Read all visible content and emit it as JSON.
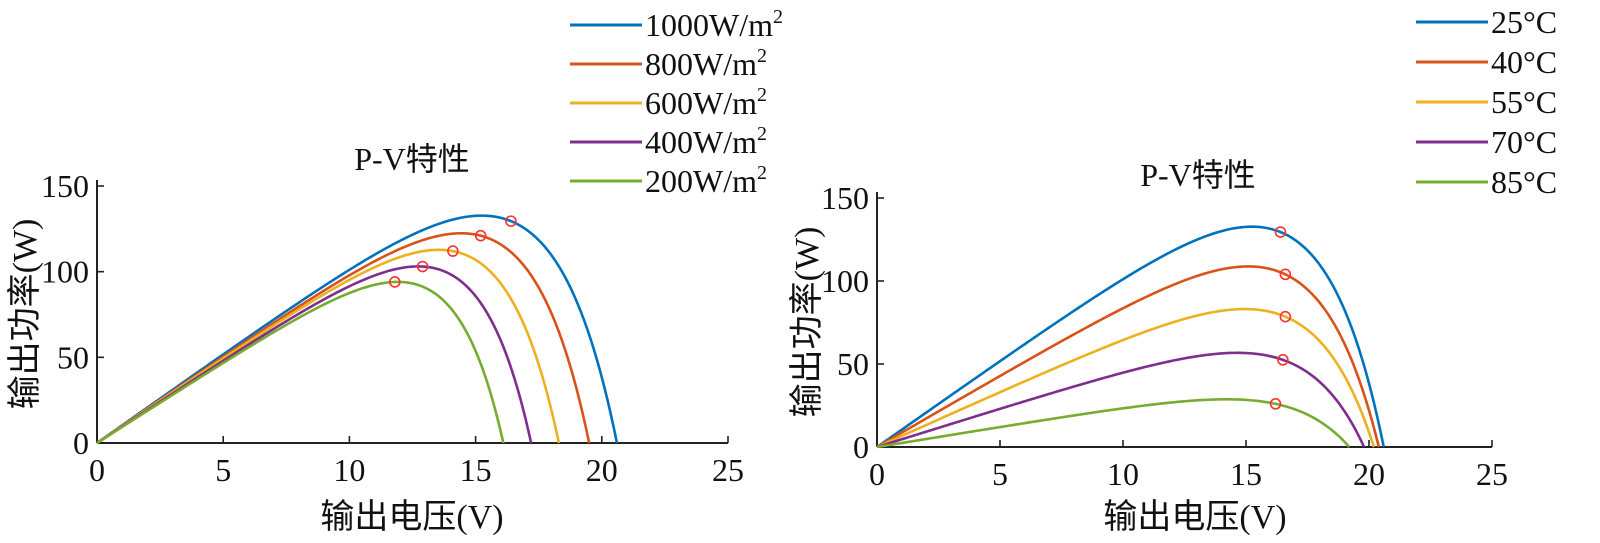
{
  "chart_data": [
    {
      "type": "line",
      "title": "P-V特性",
      "xlabel": "输出电压(V)",
      "ylabel": "输出功率(W)",
      "xlim": [
        0,
        25
      ],
      "ylim": [
        0,
        150
      ],
      "xticks": [
        0,
        5,
        10,
        15,
        20,
        25
      ],
      "yticks": [
        0,
        50,
        100,
        150
      ],
      "legend_position": "top-right",
      "series": [
        {
          "name": "1000W/m",
          "sup": "2",
          "color": "#0072BD",
          "voc": 20.6,
          "vmp": 16.4,
          "pmp": 129.5
        },
        {
          "name": "800W/m",
          "sup": "2",
          "color": "#D95319",
          "voc": 19.5,
          "vmp": 15.2,
          "pmp": 121.0
        },
        {
          "name": "600W/m",
          "sup": "2",
          "color": "#EDB120",
          "voc": 18.3,
          "vmp": 14.1,
          "pmp": 112.0
        },
        {
          "name": "400W/m",
          "sup": "2",
          "color": "#7E2F8E",
          "voc": 17.2,
          "vmp": 12.9,
          "pmp": 103.0
        },
        {
          "name": "200W/m",
          "sup": "2",
          "color": "#77AC30",
          "voc": 16.1,
          "vmp": 11.8,
          "pmp": 94.0
        }
      ]
    },
    {
      "type": "line",
      "title": "P-V特性",
      "xlabel": "输出电压(V)",
      "ylabel": "输出功率(W)",
      "xlim": [
        0,
        25
      ],
      "ylim": [
        0,
        150
      ],
      "xticks": [
        0,
        5,
        10,
        15,
        20,
        25
      ],
      "yticks": [
        0,
        50,
        100,
        150
      ],
      "legend_position": "top-right",
      "series": [
        {
          "name": "25°C",
          "sup": "",
          "color": "#0072BD",
          "voc": 20.6,
          "vmp": 16.4,
          "pmp": 129.5
        },
        {
          "name": "40°C",
          "sup": "",
          "color": "#D95319",
          "voc": 20.4,
          "vmp": 16.6,
          "pmp": 104.0
        },
        {
          "name": "55°C",
          "sup": "",
          "color": "#EDB120",
          "voc": 20.2,
          "vmp": 16.6,
          "pmp": 78.5
        },
        {
          "name": "70°C",
          "sup": "",
          "color": "#7E2F8E",
          "voc": 19.8,
          "vmp": 16.5,
          "pmp": 52.5
        },
        {
          "name": "85°C",
          "sup": "",
          "color": "#77AC30",
          "voc": 19.2,
          "vmp": 16.2,
          "pmp": 26.0
        }
      ]
    }
  ]
}
